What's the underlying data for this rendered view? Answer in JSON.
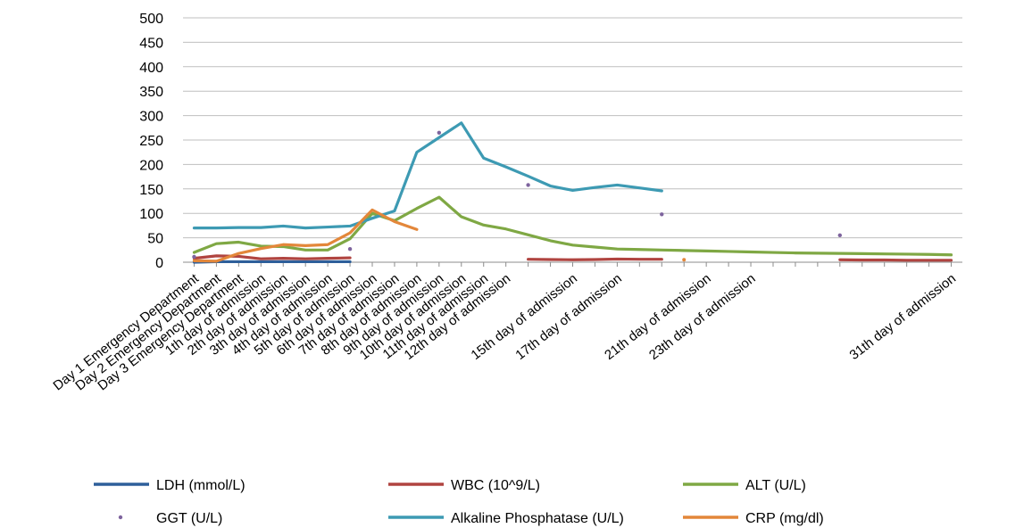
{
  "chart_data": {
    "type": "line",
    "ylim": [
      0,
      500
    ],
    "yticks": [
      0,
      50,
      100,
      150,
      200,
      250,
      300,
      350,
      400,
      450,
      500
    ],
    "grid": "horizontal",
    "legend_position": "bottom",
    "categories": [
      "Day 1 Emergency Department",
      "Day 2 Emergency Department",
      "Day 3 Emergency Department",
      "1th day of admission",
      "2th day of admission",
      "3th day of admission",
      "4th day of admission",
      "5th day of admission",
      "6th day of admission",
      "7th day of admission",
      "8th day of admission",
      "9th day of admission",
      "10th day of admission",
      "11th day of admission",
      "12th day of admission",
      "",
      "",
      "15th day of admission",
      "",
      "17th day of admission",
      "",
      "",
      "",
      "21th day of admission",
      "",
      "23th day of admission",
      "",
      "",
      "",
      "",
      "",
      "",
      "",
      "",
      "31th day of admission"
    ],
    "series": [
      {
        "name": "LDH (mmol/L)",
        "color": "#2E5F9A",
        "style": "line",
        "values": [
          0,
          1,
          1,
          1,
          1,
          1,
          1,
          1,
          null,
          null,
          null,
          null,
          null,
          null,
          null,
          null,
          null,
          null,
          null,
          null,
          null,
          null,
          null,
          null,
          null,
          null,
          null,
          null,
          null,
          null,
          null,
          null,
          null,
          null,
          null
        ]
      },
      {
        "name": "WBC (10^9/L)",
        "color": "#B04440",
        "style": "line",
        "values": [
          8,
          13,
          12,
          7,
          8,
          7,
          8,
          9,
          null,
          null,
          null,
          null,
          null,
          null,
          null,
          6,
          5.5,
          5,
          5.5,
          6.5,
          6,
          6,
          null,
          null,
          null,
          null,
          null,
          null,
          null,
          5,
          4.5,
          4.5,
          4,
          4,
          4
        ]
      },
      {
        "name": "ALT (U/L)",
        "color": "#7FA844",
        "style": "line",
        "values": [
          20,
          38,
          41,
          33,
          32,
          25,
          25,
          48,
          100,
          85,
          110,
          133,
          93,
          76,
          68,
          56,
          44,
          35,
          31,
          27,
          26,
          25,
          24,
          23,
          22,
          21,
          20,
          19,
          18.5,
          18,
          17.5,
          17,
          16.5,
          16,
          15
        ]
      },
      {
        "name": "GGT (U/L)",
        "color": "#7E649E",
        "style": "point",
        "values": [
          11,
          null,
          null,
          null,
          null,
          null,
          null,
          27,
          null,
          null,
          null,
          265,
          null,
          null,
          null,
          158,
          null,
          null,
          null,
          null,
          null,
          98,
          null,
          null,
          null,
          null,
          null,
          null,
          null,
          55,
          null,
          null,
          null,
          null,
          null
        ]
      },
      {
        "name": "Alkaline Phosphatase (U/L)",
        "color": "#3D9AB3",
        "style": "line",
        "values": [
          70,
          70,
          71,
          71,
          74,
          70,
          72,
          74,
          90,
          105,
          225,
          255,
          285,
          213,
          195,
          176,
          156,
          147,
          153,
          158,
          152,
          146,
          null,
          null,
          null,
          null,
          null,
          null,
          null,
          null,
          null,
          null,
          null,
          null,
          null
        ]
      },
      {
        "name": "CRP (mg/dl)",
        "color": "#E3873A",
        "style": "line",
        "values": [
          3,
          2,
          18,
          28,
          36,
          34,
          36,
          60,
          107,
          83,
          67,
          null,
          null,
          null,
          null,
          null,
          null,
          null,
          null,
          null,
          null,
          null,
          5,
          null,
          null,
          null,
          null,
          null,
          null,
          null,
          null,
          null,
          null,
          null,
          null
        ]
      }
    ]
  }
}
